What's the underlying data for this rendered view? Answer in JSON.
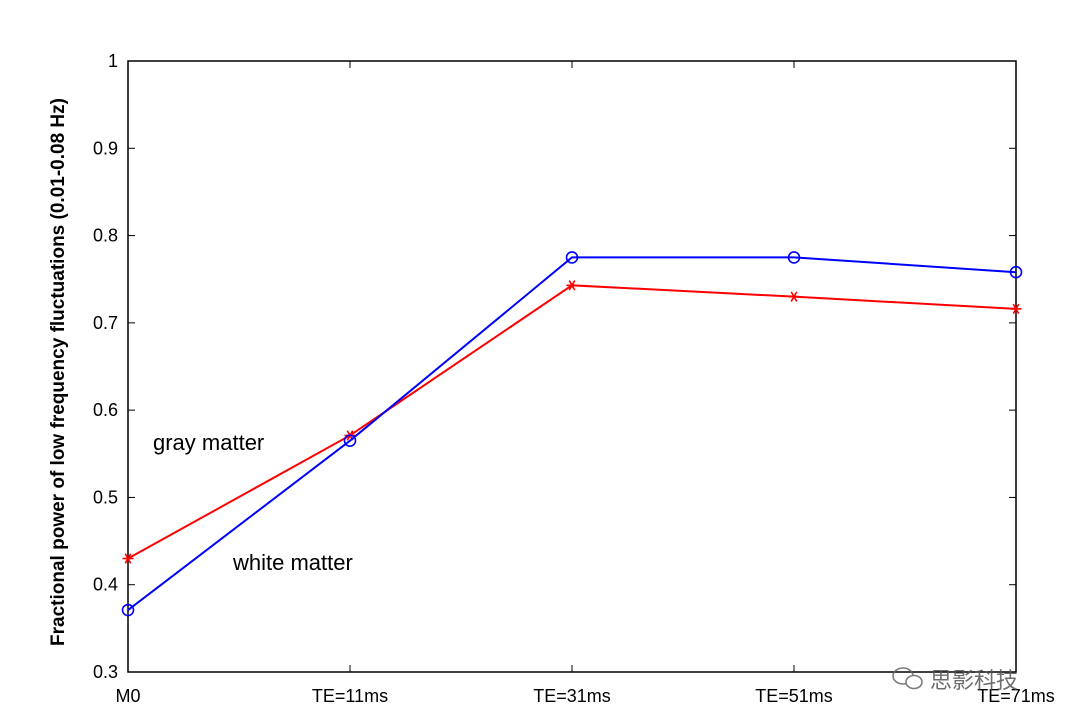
{
  "chart_data": {
    "type": "line",
    "title": "",
    "xlabel": "",
    "ylabel": "Fractional power of low frequency fluctuations (0.01-0.08 Hz)",
    "categories": [
      "M0",
      "TE=11ms",
      "TE=31ms",
      "TE=51ms",
      "TE=71ms"
    ],
    "ylim": [
      0.3,
      1
    ],
    "yticks": [
      "0.3",
      "0.4",
      "0.5",
      "0.6",
      "0.7",
      "0.8",
      "0.9",
      "1"
    ],
    "grid": false,
    "series": [
      {
        "name": "gray matter",
        "color": "#ff0000",
        "marker": "asterisk",
        "values": [
          0.43,
          0.571,
          0.743,
          0.73,
          0.716
        ]
      },
      {
        "name": "white matter",
        "color": "#0000ff",
        "marker": "circle",
        "values": [
          0.371,
          0.565,
          0.775,
          0.775,
          0.758
        ]
      }
    ],
    "annotations": [
      "gray matter",
      "white matter"
    ]
  },
  "watermark": {
    "text": "思影科技",
    "icon": "wechat-icon"
  }
}
